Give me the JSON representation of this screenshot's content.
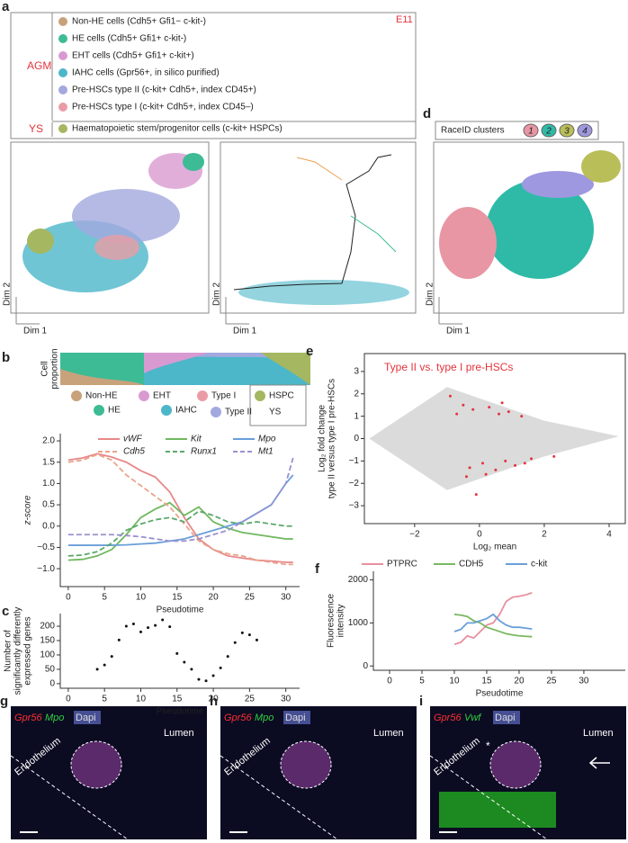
{
  "panels": {
    "a": "a",
    "d": "d",
    "g": "g",
    "h": "h",
    "i": "i"
  },
  "legend_a": {
    "title": "E11",
    "groups": [
      "AGM",
      "YS"
    ],
    "items": [
      {
        "label": "Non-HE cells (Cdh5+ Gfi1− c-kit-)",
        "color": "#c8a27a"
      },
      {
        "label": "HE cells (Cdh5+ Gfi1+ c-kit-)",
        "color": "#3dbb95"
      },
      {
        "label": "EHT cells (Cdh5+ Gfi1+ c-kit+)",
        "color": "#d99ad1"
      },
      {
        "label": "IAHC cells (Gpr56+, in silico purified)",
        "color": "#4bb7c9"
      },
      {
        "label": "Pre-HSCs type II (c-kit+ Cdh5+, index CD45+)",
        "color": "#a3a9de"
      },
      {
        "label": "Pre-HSCs type I (c-kit+ Cdh5+, index CD45–)",
        "color": "#ea9ca4"
      },
      {
        "label": "Haematopoietic stem/progenitor cells (c-kit+ HSPCs)",
        "color": "#a5b760"
      }
    ]
  },
  "tsne": {
    "xlabel": "Dim 1",
    "ylabel": "Dim 2"
  },
  "clusters": {
    "title": "RaceID clusters",
    "items": [
      {
        "label": "1",
        "color": "#e896a4"
      },
      {
        "label": "2",
        "color": "#2fbaa8"
      },
      {
        "label": "3",
        "color": "#b9be58"
      },
      {
        "label": "4",
        "color": "#9e98e0"
      }
    ]
  },
  "proportion": {
    "panel": "b",
    "ylabel": [
      "Cell",
      "proportion"
    ],
    "legend": [
      "Non-HE",
      "EHT",
      "Type I",
      "HE",
      "IAHC",
      "Type II"
    ],
    "hspc": [
      "HSPC",
      "YS"
    ]
  },
  "micrographs": [
    {
      "panel": "g",
      "stains": [
        "Gpr56",
        "Mpo",
        "Dapi"
      ]
    },
    {
      "panel": "h",
      "stains": [
        "Gpr56",
        "Mpo",
        "Dapi"
      ]
    },
    {
      "panel": "i",
      "stains": [
        "Gpr56",
        "Vwf",
        "Dapi"
      ]
    }
  ],
  "lumen": "Lumen",
  "endothelium": "Endothelium",
  "asterisk": "*",
  "chart_data": [
    {
      "type": "line",
      "xlabel": "Pseudotime",
      "ylabel": "z-score",
      "xlim": [
        -1.1,
        31.9
      ],
      "ylim": [
        -1.42,
        2.17
      ],
      "xticks": [
        0,
        5,
        10,
        15,
        20,
        25,
        30
      ],
      "yticks": [
        {
          "value": -1,
          "label": "−1.0"
        },
        {
          "value": -0.5,
          "label": "−0.5"
        },
        {
          "value": 0,
          "label": "0.0"
        },
        {
          "value": 0.5,
          "label": "0.5"
        },
        {
          "value": 1,
          "label": "1.0"
        },
        {
          "value": 1.5,
          "label": "1.5"
        },
        {
          "value": 2,
          "label": "2.0"
        }
      ],
      "x": [
        0,
        2,
        4,
        6,
        8,
        10,
        12,
        14,
        16,
        18,
        20,
        22,
        24,
        26,
        28,
        30,
        31
      ],
      "series": [
        {
          "name": "vWF",
          "color": "#e8878a",
          "dash": false,
          "values": [
            1.55,
            1.6,
            1.7,
            1.62,
            1.5,
            1.3,
            1.15,
            0.8,
            0.2,
            -0.3,
            -0.55,
            -0.7,
            -0.75,
            -0.8,
            -0.82,
            -0.85,
            -0.85
          ]
        },
        {
          "name": "Kit",
          "color": "#6fb85f",
          "dash": false,
          "values": [
            -0.8,
            -0.78,
            -0.7,
            -0.55,
            -0.2,
            0.2,
            0.4,
            0.55,
            0.25,
            0.45,
            0.1,
            -0.05,
            -0.15,
            -0.2,
            -0.25,
            -0.3,
            -0.3
          ]
        },
        {
          "name": "Mpo",
          "color": "#6a9fd8",
          "dash": false,
          "values": [
            -0.45,
            -0.45,
            -0.45,
            -0.45,
            -0.44,
            -0.42,
            -0.4,
            -0.35,
            -0.3,
            -0.2,
            -0.1,
            0,
            0.1,
            0.3,
            0.5,
            1,
            1.2
          ]
        },
        {
          "name": "Cdh5",
          "color": "#e8a58a",
          "dash": true,
          "values": [
            1.5,
            1.55,
            1.68,
            1.55,
            1.2,
            0.95,
            0.7,
            0.45,
            0.05,
            -0.35,
            -0.55,
            -0.65,
            -0.7,
            -0.8,
            -0.85,
            -0.9,
            -0.9
          ]
        },
        {
          "name": "Runx1",
          "color": "#5aa96a",
          "dash": true,
          "values": [
            -0.7,
            -0.68,
            -0.6,
            -0.4,
            -0.1,
            0.05,
            0.15,
            0.2,
            0.1,
            0.35,
            0.25,
            0.1,
            0.05,
            0.1,
            0.05,
            0,
            0
          ]
        },
        {
          "name": "Mt1",
          "color": "#9a90d0",
          "dash": true,
          "values": [
            -0.2,
            -0.2,
            -0.2,
            -0.2,
            -0.22,
            -0.25,
            -0.3,
            -0.35,
            -0.35,
            -0.3,
            -0.2,
            -0.1,
            0.1,
            0.3,
            0.5,
            1,
            1.6
          ]
        }
      ]
    },
    {
      "type": "scatter",
      "panel": "c",
      "xlabel": "Pseudotime",
      "ylabel": [
        "Number of",
        "significantly differently",
        "expressed genes"
      ],
      "xlim": [
        -1.1,
        31.9
      ],
      "ylim": [
        -16,
        244
      ],
      "xticks": [
        0,
        5,
        10,
        15,
        20,
        25,
        30
      ],
      "yticks": [
        0,
        50,
        100,
        150,
        200
      ],
      "color": "#111",
      "x": [
        4,
        5,
        6,
        7,
        8,
        9,
        10,
        11,
        12,
        13,
        14,
        15,
        16,
        17,
        18,
        19,
        20,
        21,
        22,
        23,
        24,
        25,
        26
      ],
      "values": [
        50,
        65,
        95,
        152,
        200,
        208,
        180,
        195,
        203,
        222,
        198,
        105,
        75,
        50,
        15,
        10,
        28,
        55,
        95,
        143,
        177,
        170,
        152
      ]
    },
    {
      "type": "scatter",
      "panel": "e",
      "title": "Type II vs. type I pre-HSCs",
      "xlabel": "Log₂ mean",
      "ylabel": [
        "Log₂ fold change",
        "type II versus type I pre-HSCs"
      ],
      "xlim": [
        -3.55,
        4.5
      ],
      "ylim": [
        -3.8,
        3.8
      ],
      "box": true,
      "xticks": [
        {
          "value": -2,
          "label": "−2"
        },
        0,
        2,
        4
      ],
      "yticks": [
        {
          "value": -3,
          "label": "−3"
        },
        {
          "value": -2,
          "label": "−2"
        },
        {
          "value": -1,
          "label": "−1"
        },
        0,
        1,
        2,
        3
      ],
      "color": "#e3343c",
      "x": [
        -0.9,
        -0.5,
        -0.2,
        0.3,
        0.6,
        0.9,
        1.3,
        -0.7,
        -0.3,
        0.1,
        0.5,
        0.8,
        1.1,
        1.6,
        0.2,
        -0.1,
        0.7,
        1.4,
        2.3,
        -0.4
      ],
      "values": [
        1.9,
        1.5,
        1.3,
        1.4,
        1.1,
        1.2,
        1.0,
        1.1,
        -1.3,
        -1.1,
        -1.4,
        -1.0,
        -1.2,
        -0.9,
        -1.6,
        -2.5,
        1.6,
        -1.1,
        -0.8,
        -1.7
      ]
    },
    {
      "type": "line",
      "panel": "f",
      "xlabel": "Pseudotime",
      "ylabel": [
        "Fluorescence",
        "intensity"
      ],
      "xlim": [
        -2.5,
        36.4
      ],
      "ylim": [
        -100,
        2200
      ],
      "xticks": [
        0,
        5,
        10,
        15,
        20,
        25,
        30
      ],
      "yticks": [
        0,
        1000,
        2000
      ],
      "x": [
        10,
        11,
        12,
        13,
        14,
        15,
        16,
        17,
        18,
        19,
        20,
        21,
        22
      ],
      "series": [
        {
          "name": "PTPRC",
          "color": "#e88fa0",
          "values": [
            500,
            550,
            700,
            650,
            800,
            950,
            1000,
            1200,
            1500,
            1600,
            1620,
            1650,
            1700
          ]
        },
        {
          "name": "CDH5",
          "color": "#7ab861",
          "values": [
            1200,
            1180,
            1150,
            1050,
            1000,
            900,
            850,
            800,
            750,
            720,
            700,
            690,
            680
          ]
        },
        {
          "name": "c-kit",
          "color": "#6a9fd8",
          "values": [
            800,
            850,
            1000,
            1000,
            1050,
            1100,
            1200,
            1050,
            950,
            900,
            900,
            880,
            860
          ]
        }
      ]
    }
  ]
}
